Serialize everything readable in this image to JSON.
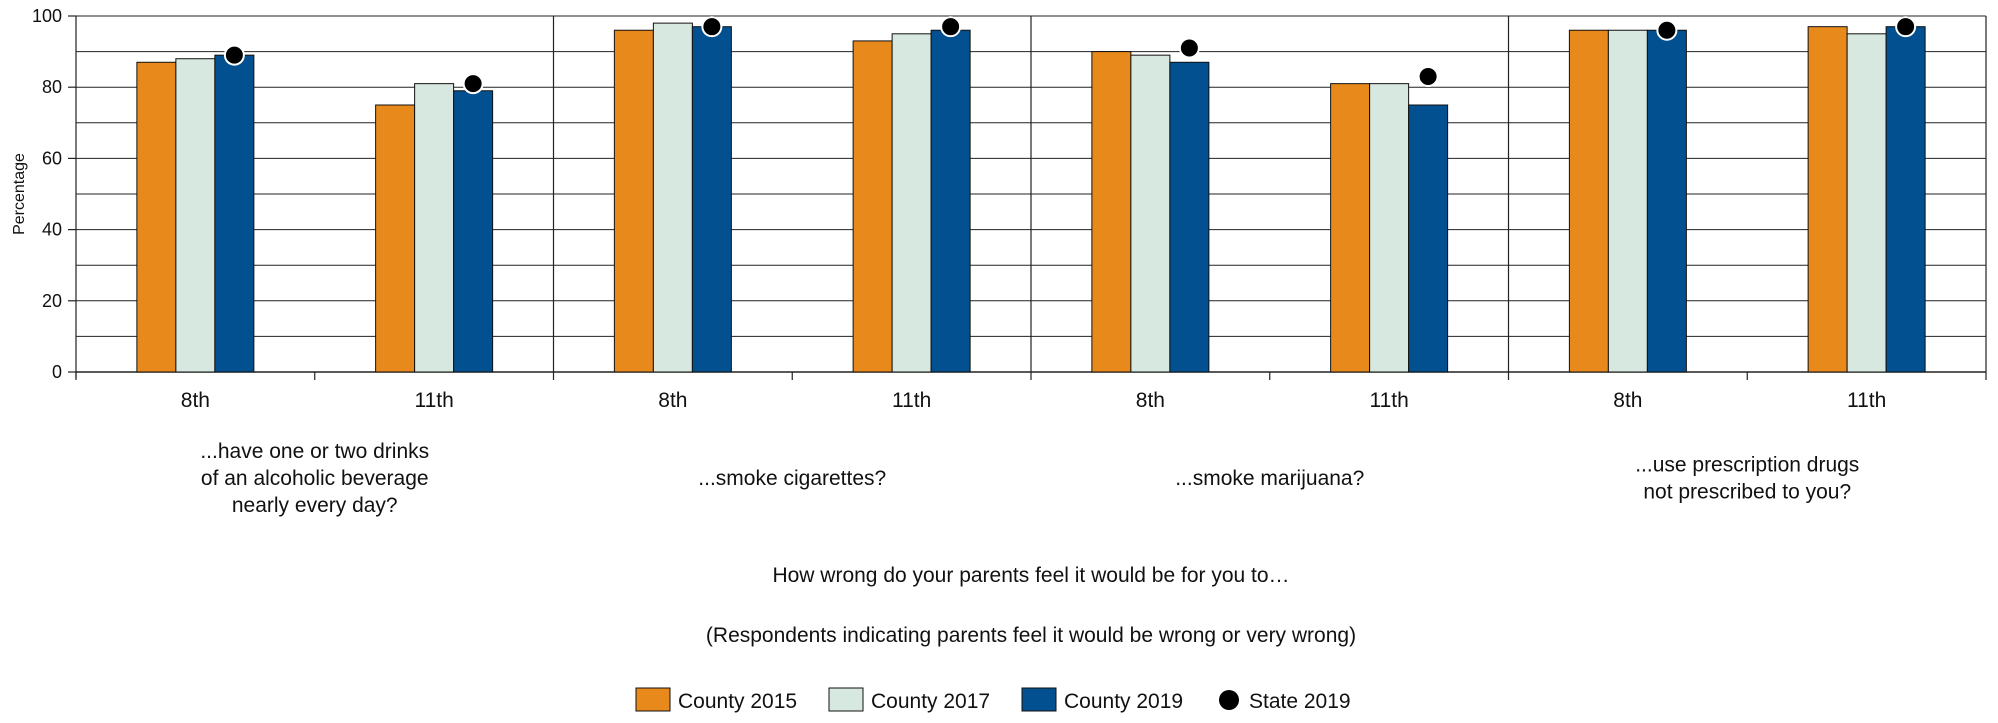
{
  "chart_data": {
    "type": "bar",
    "ylabel": "Percentage",
    "ylim": [
      0,
      100
    ],
    "yticks": [
      0,
      20,
      40,
      60,
      80,
      100
    ],
    "grid": true,
    "categories": [
      "8th",
      "11th",
      "8th",
      "11th",
      "8th",
      "11th",
      "8th",
      "11th"
    ],
    "groups": [
      {
        "label_lines": [
          "...have one or two drinks",
          "of an alcoholic beverage",
          "nearly every day?"
        ]
      },
      {
        "label_lines": [
          "...smoke cigarettes?"
        ]
      },
      {
        "label_lines": [
          "...smoke marijuana?"
        ]
      },
      {
        "label_lines": [
          "...use prescription drugs",
          "not prescribed to you?"
        ]
      }
    ],
    "series": [
      {
        "name": "County 2015",
        "color": "#E8891C",
        "values": [
          87,
          75,
          96,
          93,
          90,
          81,
          96,
          97
        ]
      },
      {
        "name": "County 2017",
        "color": "#D6E8DF",
        "values": [
          88,
          81,
          98,
          95,
          89,
          81,
          96,
          95
        ]
      },
      {
        "name": "County 2019",
        "color": "#02508F",
        "values": [
          89,
          79,
          97,
          96,
          87,
          75,
          96,
          97
        ]
      }
    ],
    "points": {
      "name": "State 2019",
      "color": "#000000",
      "values": [
        89,
        81,
        97,
        97,
        91,
        83,
        96,
        97
      ]
    },
    "question": "How wrong do your parents feel it would be for you to…",
    "note": "(Respondents indicating parents feel it would be wrong or very wrong)",
    "legend_position": "bottom"
  }
}
